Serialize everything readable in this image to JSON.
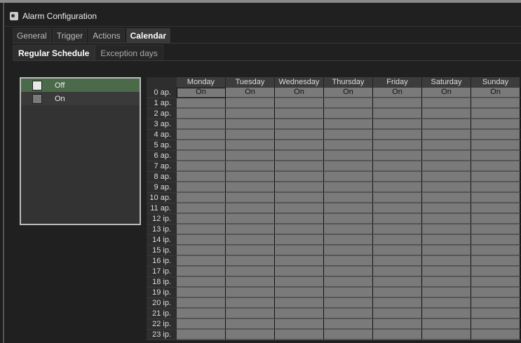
{
  "window": {
    "title": "Alarm Configuration",
    "icon": "gear-icon"
  },
  "tabs": [
    {
      "label": "General"
    },
    {
      "label": "Trigger"
    },
    {
      "label": "Actions"
    },
    {
      "label": "Calendar",
      "active": true
    }
  ],
  "subtabs": [
    {
      "label": "Regular Schedule",
      "active": true
    },
    {
      "label": "Exception days"
    }
  ],
  "legend": [
    {
      "label": "Off",
      "color": "#e8e8e8",
      "row_bg": "#4a6a4a"
    },
    {
      "label": "On",
      "color": "#7a7a7a",
      "row_bg": "#3a3a3a"
    }
  ],
  "schedule": {
    "days": [
      "Monday",
      "Tuesday",
      "Wednesday",
      "Thursday",
      "Friday",
      "Saturday",
      "Sunday"
    ],
    "hours": [
      "0 ap.",
      "1 ap.",
      "2 ap.",
      "3 ap.",
      "4 ap.",
      "5 ap.",
      "6 ap.",
      "7 ap.",
      "8 ap.",
      "9 ap.",
      "10 ap.",
      "11 ap.",
      "12 ip.",
      "13 ip.",
      "14 ip.",
      "15 ip.",
      "16 ip.",
      "17 ip.",
      "18 ip.",
      "19 ip.",
      "20 ip.",
      "21 ip.",
      "22 ip.",
      "23 ip."
    ],
    "cell_labels": {
      "0": [
        "On",
        "On",
        "On",
        "On",
        "On",
        "On",
        "On"
      ]
    },
    "all_state": "On"
  }
}
